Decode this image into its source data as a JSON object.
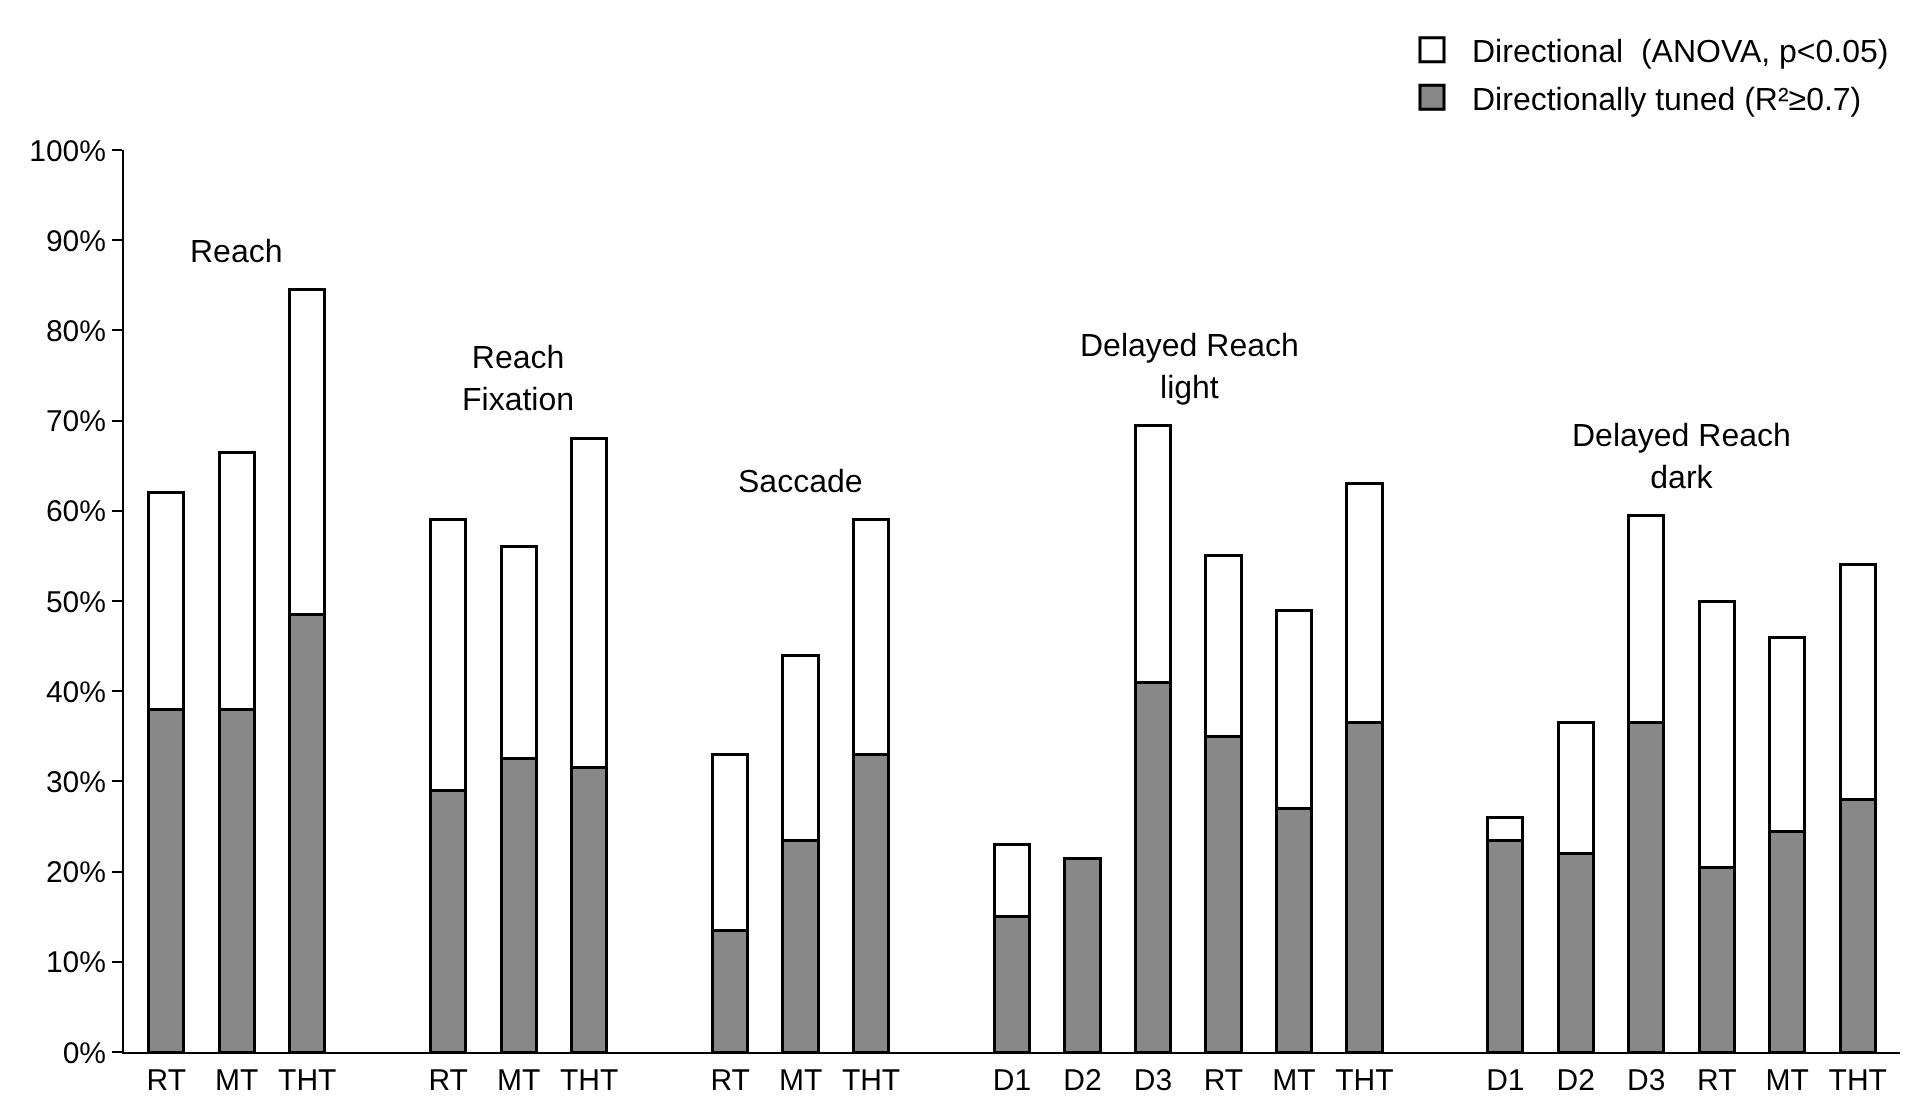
{
  "chart_data": {
    "type": "bar",
    "stacked": true,
    "categories": [
      "RT",
      "MT",
      "THT",
      null,
      "RT",
      "MT",
      "THT",
      null,
      "RT",
      "MT",
      "THT",
      null,
      "D1",
      "D2",
      "D3",
      "RT",
      "MT",
      "THT",
      null,
      "D1",
      "D2",
      "D3",
      "RT",
      "MT",
      "THT"
    ],
    "series": [
      {
        "name": "Directionally tuned (R²≥0.7)",
        "color": "#888888",
        "values": [
          38,
          38,
          48.5,
          null,
          29,
          32.5,
          31.5,
          null,
          13.5,
          23.5,
          33,
          null,
          15,
          21.5,
          41,
          35,
          27,
          36.5,
          null,
          23.5,
          22,
          36.5,
          20.5,
          24.5,
          28
        ]
      },
      {
        "name": "Directional  (ANOVA, p<0.05)",
        "color": "#ffffff",
        "values": [
          24,
          28.5,
          36,
          null,
          30,
          23.5,
          36.5,
          null,
          19.5,
          20.5,
          26,
          null,
          8,
          null,
          28.5,
          20,
          22,
          26.5,
          null,
          2.5,
          14.5,
          23,
          29.5,
          21.5,
          26
        ]
      }
    ],
    "annotations": [
      "Reach",
      "Reach\nFixation",
      "Saccade",
      "Delayed Reach\nlight",
      "Delayed Reach\ndark"
    ],
    "ylim": [
      0,
      100
    ],
    "yticks": [
      {
        "value": 0,
        "label": "0%"
      },
      {
        "value": 10,
        "label": "10%"
      },
      {
        "value": 20,
        "label": "20%"
      },
      {
        "value": 30,
        "label": "30%"
      },
      {
        "value": 40,
        "label": "40%"
      },
      {
        "value": 50,
        "label": "50%"
      },
      {
        "value": 60,
        "label": "60%"
      },
      {
        "value": 70,
        "label": "70%"
      },
      {
        "value": 80,
        "label": "80%"
      },
      {
        "value": 90,
        "label": "90%"
      },
      {
        "value": 100,
        "label": "100%"
      }
    ],
    "grid": false,
    "legend": "top right"
  }
}
